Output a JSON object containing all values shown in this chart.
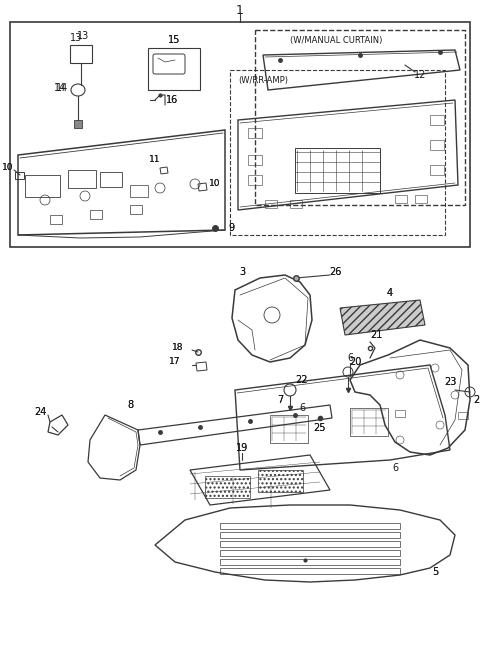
{
  "bg_color": "#ffffff",
  "line_color": "#3a3a3a",
  "label_color": "#1a1a1a",
  "fig_width": 4.8,
  "fig_height": 6.53,
  "dpi": 100
}
